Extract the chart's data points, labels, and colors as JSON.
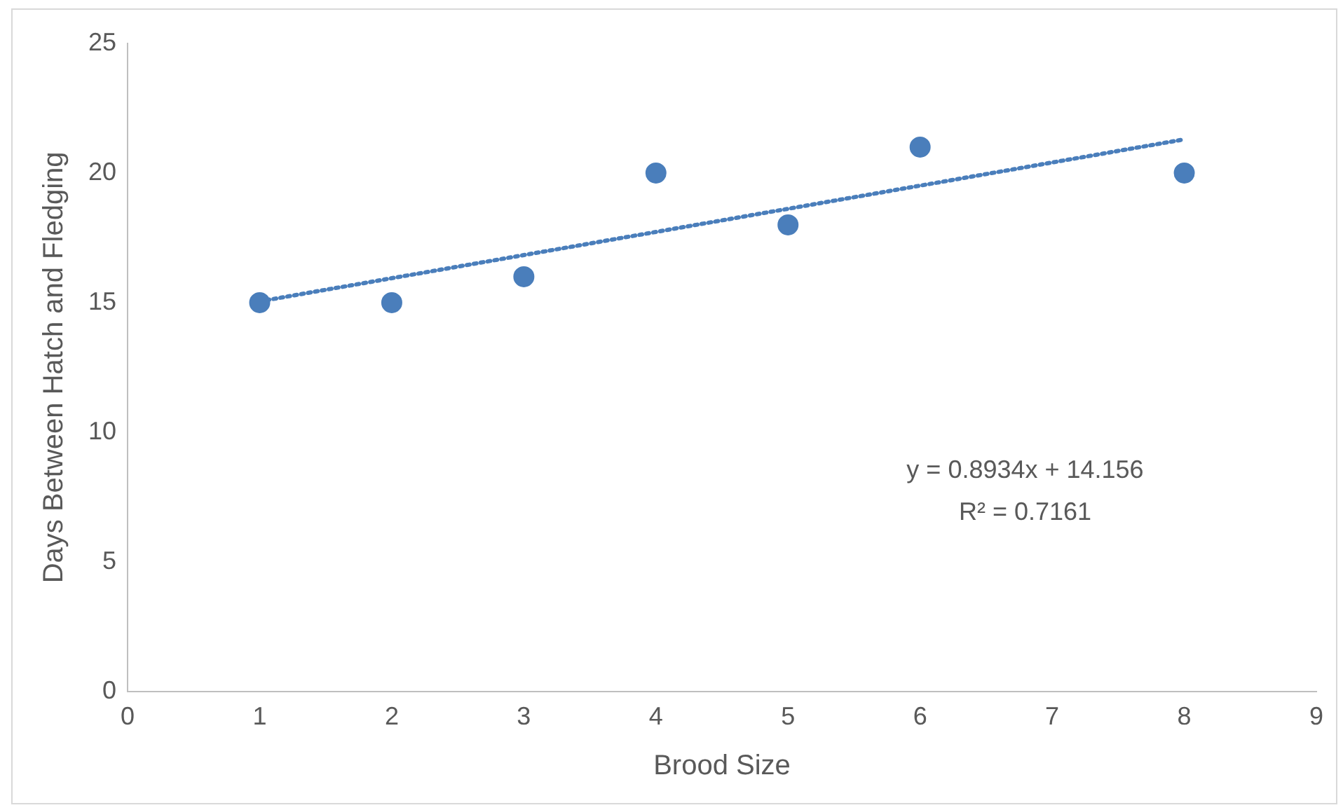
{
  "chart_data": {
    "type": "scatter",
    "xlabel": "Brood Size",
    "ylabel": "Days Between Hatch and Fledging",
    "x": [
      1,
      2,
      3,
      4,
      5,
      6,
      8
    ],
    "series": [
      {
        "color": "#4a7ebb",
        "values": [
          15,
          15,
          16,
          20,
          18,
          21,
          20
        ],
        "marker": "circle"
      },
      {
        "type": "line",
        "color": "#4a7ebb",
        "x": [
          1,
          8
        ],
        "values": [
          15.05,
          21.3
        ],
        "line_style": "dotted",
        "marker": "none"
      }
    ],
    "xlim": [
      0,
      9
    ],
    "xticks": [
      0,
      1,
      2,
      3,
      4,
      5,
      6,
      7,
      8,
      9
    ],
    "ylim": [
      0,
      25
    ],
    "yticks": [
      0,
      5,
      10,
      15,
      20,
      25
    ],
    "grid": false,
    "legend": false,
    "annotations": [
      "y = 0.8934x + 14.156",
      "R² = 0.7161"
    ]
  }
}
